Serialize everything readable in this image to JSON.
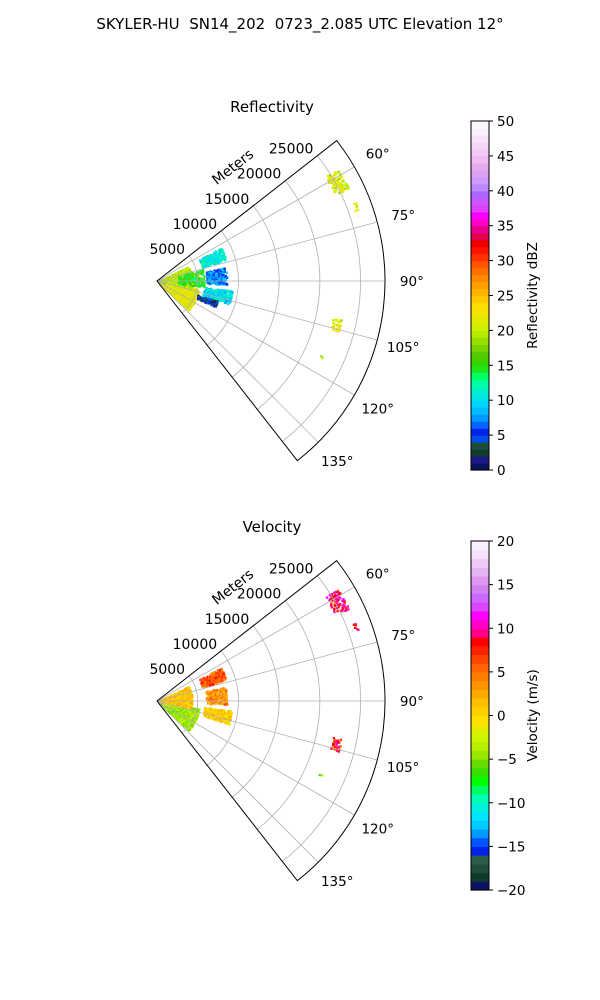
{
  "figure": {
    "title": "SKYLER-HU  SN14_202  0723_2.085 UTC Elevation 12°"
  },
  "chart_data": [
    {
      "type": "polar_sector",
      "title": "Reflectivity",
      "radial_label": "Meters",
      "r_ticks": [
        5000,
        10000,
        15000,
        20000,
        25000
      ],
      "r_tick_labels": [
        "5000",
        "10000",
        "15000",
        "20000",
        "25000"
      ],
      "r_max": 28000,
      "theta_range_deg": [
        52,
        142
      ],
      "theta_ticks_deg": [
        60,
        75,
        90,
        105,
        120,
        135
      ],
      "theta_tick_labels": [
        "60°",
        "75°",
        "90°",
        "105°",
        "120°",
        "135°"
      ],
      "grid": true,
      "colorbar": {
        "label": "Reflectivity dBZ",
        "vmin": 0,
        "vmax": 50,
        "ticks": [
          0,
          5,
          10,
          15,
          20,
          25,
          30,
          35,
          40,
          45,
          50
        ],
        "tick_labels": [
          "0",
          "5",
          "10",
          "15",
          "20",
          "25",
          "30",
          "35",
          "40",
          "45",
          "50"
        ],
        "colors": [
          "#0b1260",
          "#1c1a8a",
          "#0d3b2d",
          "#1e4e3a",
          "#004ce6",
          "#0022e6",
          "#0066ff",
          "#0099ff",
          "#00bbff",
          "#00d5ff",
          "#00e6e6",
          "#00f0c8",
          "#00ffa0",
          "#00ff60",
          "#1ee61e",
          "#3cd200",
          "#55cc00",
          "#77d400",
          "#99e000",
          "#b4ea00",
          "#ccf000",
          "#e0ea00",
          "#f0e400",
          "#ffdc00",
          "#ffc800",
          "#ffb400",
          "#ffa000",
          "#ff8c00",
          "#ff7000",
          "#ff5500",
          "#ff3300",
          "#ff1100",
          "#ee0000",
          "#e60050",
          "#e6008c",
          "#ff00c8",
          "#ff00ff",
          "#e040ff",
          "#cc55ff",
          "#aa66ff",
          "#bb88ff",
          "#cc99ff",
          "#dda0ee",
          "#e6aaee",
          "#eebbf4",
          "#f3c8f6",
          "#f6d6f8",
          "#f8e2fa",
          "#fbeefc",
          "#fdf6fe"
        ]
      },
      "echo_regions": [
        {
          "r_min": 300,
          "r_max": 5000,
          "theta_min": 100,
          "theta_max": 132,
          "value": 22,
          "density": 0.75
        },
        {
          "r_min": 300,
          "r_max": 4200,
          "theta_min": 64,
          "theta_max": 100,
          "value": 20,
          "density": 0.55
        },
        {
          "r_min": 2500,
          "r_max": 5600,
          "theta_min": 74,
          "theta_max": 96,
          "value": 15,
          "density": 0.25
        },
        {
          "r_min": 5800,
          "r_max": 8800,
          "theta_min": 62,
          "theta_max": 72,
          "value": 11,
          "density": 0.55
        },
        {
          "r_min": 6000,
          "r_max": 8400,
          "theta_min": 78,
          "theta_max": 92,
          "value": 7,
          "density": 0.45
        },
        {
          "r_min": 5800,
          "r_max": 9200,
          "theta_min": 97,
          "theta_max": 107,
          "value": 10,
          "density": 0.55
        },
        {
          "r_min": 5200,
          "r_max": 7600,
          "theta_min": 108,
          "theta_max": 113,
          "value": 4,
          "density": 0.6
        },
        {
          "r_min": 24300,
          "r_max": 26000,
          "theta_min": 58,
          "theta_max": 64,
          "value": 21,
          "density": 0.65
        },
        {
          "r_min": 25700,
          "r_max": 26200,
          "theta_min": 68,
          "theta_max": 70,
          "value": 20,
          "density": 0.5
        },
        {
          "r_min": 22000,
          "r_max": 23000,
          "theta_min": 101.5,
          "theta_max": 105,
          "value": 21,
          "density": 0.6
        },
        {
          "r_min": 21700,
          "r_max": 22100,
          "theta_min": 114,
          "theta_max": 115,
          "value": 20,
          "density": 0.5
        }
      ]
    },
    {
      "type": "polar_sector",
      "title": "Velocity",
      "radial_label": "Meters",
      "r_ticks": [
        5000,
        10000,
        15000,
        20000,
        25000
      ],
      "r_tick_labels": [
        "5000",
        "10000",
        "15000",
        "20000",
        "25000"
      ],
      "r_max": 28000,
      "theta_range_deg": [
        52,
        142
      ],
      "theta_ticks_deg": [
        60,
        75,
        90,
        105,
        120,
        135
      ],
      "theta_tick_labels": [
        "60°",
        "75°",
        "90°",
        "105°",
        "120°",
        "135°"
      ],
      "grid": true,
      "colorbar": {
        "label": "Velocity (m/s)",
        "vmin": -20,
        "vmax": 20,
        "ticks": [
          -20,
          -15,
          -10,
          -5,
          0,
          5,
          10,
          15,
          20
        ],
        "tick_labels": [
          "−20",
          "−15",
          "−10",
          "−5",
          "0",
          "5",
          "10",
          "15",
          "20"
        ],
        "colors": [
          "#0b1260",
          "#0d3b2d",
          "#1e4e3a",
          "#2a5e48",
          "#0022e6",
          "#0055ff",
          "#0099ff",
          "#00ccff",
          "#00e6ff",
          "#00f0dc",
          "#00ffb0",
          "#00ff60",
          "#00ff00",
          "#33e000",
          "#66dd00",
          "#99e600",
          "#b4f000",
          "#ccf500",
          "#e6ec00",
          "#ffe000",
          "#ffd000",
          "#ffc000",
          "#ffaa00",
          "#ff9400",
          "#ff7e00",
          "#ff6400",
          "#ff4400",
          "#ff2200",
          "#ff0000",
          "#ff0088",
          "#ff00cc",
          "#ff00ff",
          "#dd44ff",
          "#cc66ff",
          "#d080f0",
          "#dd99f0",
          "#e6b3f4",
          "#efccf7",
          "#f6e0fa",
          "#fbf0fd"
        ]
      },
      "echo_regions": [
        {
          "r_min": 300,
          "r_max": 5000,
          "theta_min": 100,
          "theta_max": 132,
          "value": -4,
          "density": 0.75
        },
        {
          "r_min": 300,
          "r_max": 4200,
          "theta_min": 64,
          "theta_max": 100,
          "value": 1,
          "density": 0.55
        },
        {
          "r_min": 5800,
          "r_max": 8800,
          "theta_min": 62,
          "theta_max": 72,
          "value": 6,
          "density": 0.55
        },
        {
          "r_min": 6000,
          "r_max": 8400,
          "theta_min": 78,
          "theta_max": 92,
          "value": 4,
          "density": 0.45
        },
        {
          "r_min": 5800,
          "r_max": 9200,
          "theta_min": 97,
          "theta_max": 107,
          "value": 0.5,
          "density": 0.6
        },
        {
          "r_min": 24300,
          "r_max": 26000,
          "theta_min": 58,
          "theta_max": 64,
          "value": 9,
          "density": 0.65
        },
        {
          "r_min": 25700,
          "r_max": 26200,
          "theta_min": 68,
          "theta_max": 70,
          "value": 9,
          "density": 0.5
        },
        {
          "r_min": 22000,
          "r_max": 23000,
          "theta_min": 101.5,
          "theta_max": 105,
          "value": 8,
          "density": 0.6
        },
        {
          "r_min": 21700,
          "r_max": 22100,
          "theta_min": 114,
          "theta_max": 115,
          "value": -4,
          "density": 0.5
        }
      ]
    }
  ]
}
